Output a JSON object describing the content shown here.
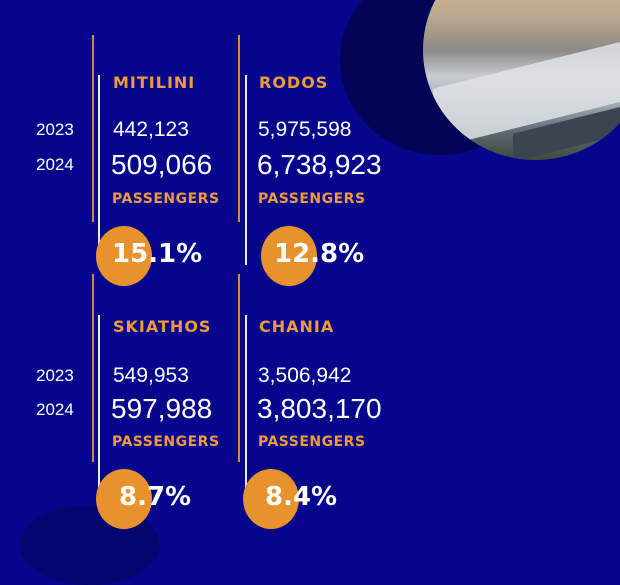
{
  "years": {
    "y2023": "2023",
    "y2024": "2024"
  },
  "airports": [
    {
      "name": "MITILINI",
      "v2023": "442,123",
      "v2024": "509,066",
      "unit": "PASSENGERS",
      "growth": "15.1%"
    },
    {
      "name": "RODOS",
      "v2023": "5,975,598",
      "v2024": "6,738,923",
      "unit": "PASSENGERS",
      "growth": "12.8%"
    },
    {
      "name": "SKIATHOS",
      "v2023": "549,953",
      "v2024": "597,988",
      "unit": "PASSENGERS",
      "growth": "8.7%"
    },
    {
      "name": "CHANIA",
      "v2023": "3,506,942",
      "v2024": "3,803,170",
      "unit": "PASSENGERS",
      "growth": "8.4%"
    }
  ],
  "colors": {
    "background": "#06068c",
    "accent": "#ef9a3c",
    "circle": "#e8922e"
  }
}
